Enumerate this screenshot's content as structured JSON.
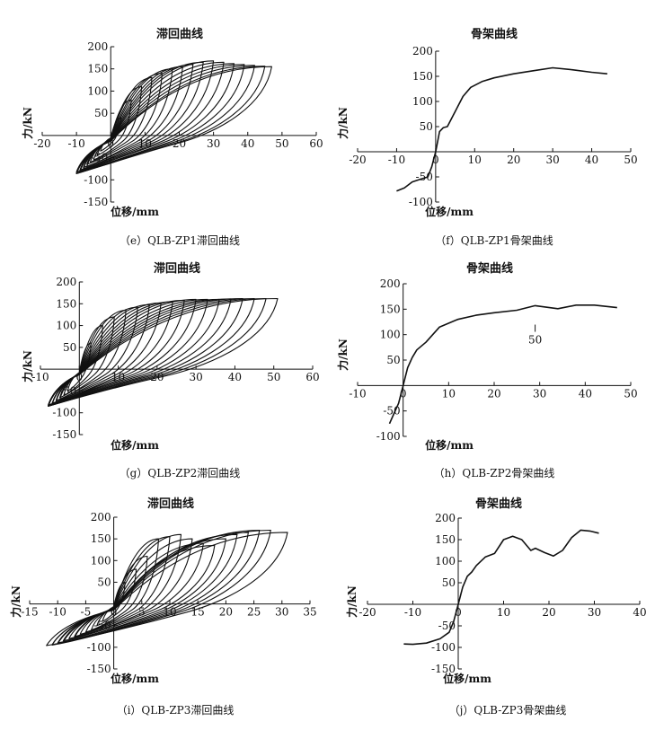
{
  "panels": [
    {
      "id": "e",
      "title": "滞回曲线",
      "caption": "（e）QLB-ZP1滞回曲线",
      "chart_data": {
        "type": "line",
        "kind": "hysteresis",
        "title": "滞回曲线",
        "xlabel": "位移/mm",
        "ylabel": "力/kN",
        "xlim": [
          -20,
          60
        ],
        "ylim": [
          -150,
          200
        ],
        "xticks": [
          -20,
          -10,
          0,
          10,
          20,
          30,
          40,
          50,
          60
        ],
        "yticks": [
          -150,
          -100,
          -50,
          50,
          100,
          150,
          200
        ],
        "cycles": [
          {
            "umax": 3,
            "umin": -3,
            "fmax": 40,
            "fmin": -35
          },
          {
            "umax": 6,
            "umin": -4,
            "fmax": 80,
            "fmin": -45
          },
          {
            "umax": 9,
            "umin": -5,
            "fmax": 110,
            "fmin": -55
          },
          {
            "umax": 12,
            "umin": -6,
            "fmax": 130,
            "fmin": -60
          },
          {
            "umax": 15,
            "umin": -7,
            "fmax": 140,
            "fmin": -65
          },
          {
            "umax": 18,
            "umin": -7,
            "fmax": 150,
            "fmin": -70
          },
          {
            "umax": 21,
            "umin": -8,
            "fmax": 155,
            "fmin": -72
          },
          {
            "umax": 24,
            "umin": -8,
            "fmax": 160,
            "fmin": -75
          },
          {
            "umax": 27,
            "umin": -9,
            "fmax": 165,
            "fmin": -78
          },
          {
            "umax": 30,
            "umin": -9,
            "fmax": 168,
            "fmin": -80
          },
          {
            "umax": 33,
            "umin": -9,
            "fmax": 165,
            "fmin": -82
          },
          {
            "umax": 36,
            "umin": -10,
            "fmax": 162,
            "fmin": -82
          },
          {
            "umax": 39,
            "umin": -10,
            "fmax": 160,
            "fmin": -85
          },
          {
            "umax": 42,
            "umin": -10,
            "fmax": 158,
            "fmin": -85
          },
          {
            "umax": 45,
            "umin": -10,
            "fmax": 156,
            "fmin": -86
          },
          {
            "umax": 47,
            "umin": -10,
            "fmax": 155,
            "fmin": -86
          }
        ]
      }
    },
    {
      "id": "f",
      "title": "骨架曲线",
      "caption": "（f）QLB-ZP1骨架曲线",
      "chart_data": {
        "type": "line",
        "kind": "skeleton",
        "title": "骨架曲线",
        "xlabel": "位移/mm",
        "ylabel": "力/kN",
        "xlim": [
          -20,
          50
        ],
        "ylim": [
          -100,
          200
        ],
        "xticks": [
          -20,
          -10,
          0,
          10,
          20,
          30,
          40,
          50
        ],
        "yticks": [
          -100,
          -50,
          50,
          100,
          150,
          200
        ],
        "series": [
          {
            "x": [
              -10,
              -8,
              -6,
              -4,
              -2,
              -1,
              0,
              1,
              2,
              3,
              5,
              7,
              9,
              12,
              15,
              20,
              25,
              30,
              35,
              40,
              44
            ],
            "y": [
              -78,
              -72,
              -60,
              -55,
              -50,
              -30,
              0,
              40,
              48,
              50,
              80,
              110,
              128,
              140,
              147,
              155,
              161,
              167,
              163,
              158,
              155
            ]
          }
        ]
      }
    },
    {
      "id": "g",
      "title": "滞回曲线",
      "caption": "（g）QLB-ZP2滞回曲线",
      "chart_data": {
        "type": "line",
        "kind": "hysteresis",
        "title": "滞回曲线",
        "xlabel": "位移/mm",
        "ylabel": "力/kN",
        "xlim": [
          -10,
          60
        ],
        "ylim": [
          -150,
          200
        ],
        "xticks": [
          -10,
          0,
          10,
          20,
          30,
          40,
          50,
          60
        ],
        "yticks": [
          -150,
          -100,
          -50,
          50,
          100,
          150,
          200
        ],
        "cycles": [
          {
            "umax": 3,
            "umin": -3,
            "fmax": 60,
            "fmin": -50
          },
          {
            "umax": 6,
            "umin": -4,
            "fmax": 100,
            "fmin": -60
          },
          {
            "umax": 9,
            "umin": -5,
            "fmax": 120,
            "fmin": -65
          },
          {
            "umax": 12,
            "umin": -5,
            "fmax": 135,
            "fmin": -70
          },
          {
            "umax": 15,
            "umin": -6,
            "fmax": 142,
            "fmin": -72
          },
          {
            "umax": 18,
            "umin": -6,
            "fmax": 148,
            "fmin": -75
          },
          {
            "umax": 21,
            "umin": -7,
            "fmax": 152,
            "fmin": -78
          },
          {
            "umax": 24,
            "umin": -7,
            "fmax": 155,
            "fmin": -80
          },
          {
            "umax": 27,
            "umin": -7,
            "fmax": 158,
            "fmin": -80
          },
          {
            "umax": 30,
            "umin": -8,
            "fmax": 160,
            "fmin": -82
          },
          {
            "umax": 33,
            "umin": -8,
            "fmax": 160,
            "fmin": -82
          },
          {
            "umax": 36,
            "umin": -8,
            "fmax": 160,
            "fmin": -83
          },
          {
            "umax": 39,
            "umin": -8,
            "fmax": 161,
            "fmin": -84
          },
          {
            "umax": 42,
            "umin": -8,
            "fmax": 162,
            "fmin": -84
          },
          {
            "umax": 45,
            "umin": -8,
            "fmax": 162,
            "fmin": -85
          },
          {
            "umax": 48,
            "umin": -8,
            "fmax": 162,
            "fmin": -85
          },
          {
            "umax": 51,
            "umin": -8,
            "fmax": 162,
            "fmin": -85
          }
        ]
      }
    },
    {
      "id": "h",
      "title": "骨架曲线",
      "caption": "（h）QLB-ZP2骨架曲线",
      "chart_data": {
        "type": "line",
        "kind": "skeleton",
        "title": "骨架曲线",
        "xlabel": "位移/mm",
        "ylabel": "力/kN",
        "annotation": "50",
        "xlim": [
          -10,
          50
        ],
        "ylim": [
          -100,
          200
        ],
        "xticks": [
          -10,
          0,
          10,
          20,
          30,
          40,
          50
        ],
        "yticks": [
          -100,
          -50,
          50,
          100,
          150,
          200
        ],
        "series": [
          {
            "x": [
              -3,
              -2,
              -1,
              0,
              1,
              2,
              3,
              5,
              8,
              12,
              16,
              20,
              25,
              29,
              34,
              38,
              42,
              47
            ],
            "y": [
              -75,
              -55,
              -35,
              0,
              35,
              55,
              70,
              85,
              115,
              130,
              138,
              143,
              148,
              157,
              151,
              158,
              158,
              153
            ]
          }
        ]
      }
    },
    {
      "id": "i",
      "title": "滞回曲线",
      "caption": "（i）QLB-ZP3滞回曲线",
      "chart_data": {
        "type": "line",
        "kind": "hysteresis",
        "title": "滞回曲线",
        "xlabel": "位移/mm",
        "ylabel": "力/kN",
        "xlim": [
          -15,
          35
        ],
        "ylim": [
          -150,
          200
        ],
        "xticks": [
          -15,
          -10,
          -5,
          0,
          5,
          10,
          15,
          20,
          25,
          30,
          35
        ],
        "yticks": [
          -150,
          -100,
          -50,
          50,
          100,
          150,
          200
        ],
        "cycles": [
          {
            "umax": 2,
            "umin": -2,
            "fmax": 50,
            "fmin": -40
          },
          {
            "umax": 4,
            "umin": -3,
            "fmax": 80,
            "fmin": -50
          },
          {
            "umax": 6,
            "umin": -4,
            "fmax": 110,
            "fmin": -60
          },
          {
            "umax": 8,
            "umin": -5,
            "fmax": 150,
            "fmin": -65
          },
          {
            "umax": 10,
            "umin": -6,
            "fmax": 155,
            "fmin": -70
          },
          {
            "umax": 12,
            "umin": -7,
            "fmax": 160,
            "fmin": -75
          },
          {
            "umax": 14,
            "umin": -7,
            "fmax": 150,
            "fmin": -78
          },
          {
            "umax": 16,
            "umin": -8,
            "fmax": 140,
            "fmin": -80
          },
          {
            "umax": 18,
            "umin": -9,
            "fmax": 135,
            "fmin": -85
          },
          {
            "umax": 20,
            "umin": -9,
            "fmax": 150,
            "fmin": -88
          },
          {
            "umax": 22,
            "umin": -10,
            "fmax": 160,
            "fmin": -90
          },
          {
            "umax": 24,
            "umin": -10,
            "fmax": 165,
            "fmin": -92
          },
          {
            "umax": 26,
            "umin": -11,
            "fmax": 170,
            "fmin": -94
          },
          {
            "umax": 28,
            "umin": -11,
            "fmax": 170,
            "fmin": -95
          },
          {
            "umax": 31,
            "umin": -12,
            "fmax": 165,
            "fmin": -96
          }
        ]
      }
    },
    {
      "id": "j",
      "title": "骨架曲线",
      "caption": "（j）QLB-ZP3骨架曲线",
      "chart_data": {
        "type": "line",
        "kind": "skeleton",
        "title": "骨架曲线",
        "xlabel": "位移/mm",
        "ylabel": "力/kN",
        "xlim": [
          -20,
          40
        ],
        "ylim": [
          -150,
          200
        ],
        "xticks": [
          -20,
          -10,
          0,
          10,
          20,
          30,
          40
        ],
        "yticks": [
          -150,
          -100,
          -50,
          50,
          100,
          150,
          200
        ],
        "series": [
          {
            "x": [
              -12,
              -10,
              -7,
              -4,
              -2,
              -1,
              0,
              1,
              2,
              3,
              4,
              6,
              8,
              10,
              12,
              14,
              16,
              17,
              19,
              21,
              23,
              25,
              27,
              29,
              31
            ],
            "y": [
              -92,
              -93,
              -90,
              -80,
              -65,
              -40,
              0,
              40,
              65,
              75,
              90,
              110,
              118,
              150,
              158,
              150,
              125,
              130,
              120,
              112,
              125,
              155,
              172,
              170,
              165
            ]
          }
        ]
      }
    }
  ]
}
